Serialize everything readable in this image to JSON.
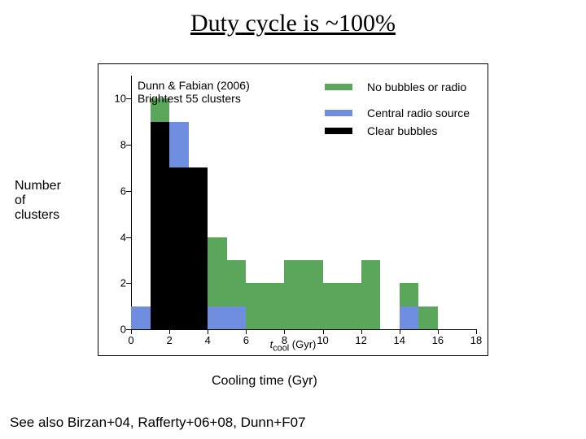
{
  "title": "Duty cycle is ~100%",
  "ylabel_out": "Number\nof\nclusters",
  "xlabel_out": "Cooling time (Gyr)",
  "footer": "See also Birzan+04, Rafferty+06+08, Dunn+F07",
  "annotations": {
    "source_line1": "Dunn & Fabian (2006)",
    "source_line2": "Brightest 55 clusters",
    "legend_green": "No bubbles or radio",
    "legend_blue": "Central radio source",
    "legend_black": "Clear bubbles"
  },
  "chart": {
    "type": "stacked-histogram",
    "background_color": "#ffffff",
    "x": {
      "min": 0,
      "max": 18,
      "ticks": [
        0,
        2,
        4,
        6,
        8,
        10,
        12,
        14,
        16,
        18
      ],
      "title": "t_cool (Gyr)"
    },
    "y": {
      "min": 0,
      "max": 11,
      "ticks": [
        0,
        2,
        4,
        6,
        8,
        10
      ]
    },
    "bin_width": 1,
    "colors": {
      "green": "#5aa65a",
      "blue": "#708ee0",
      "black": "#000000"
    },
    "legend_swatch_size": {
      "w": 34,
      "h": 8
    },
    "axis_font_px": 13,
    "bins": [
      {
        "x": 0,
        "green": 0,
        "blue": 1,
        "black": 0
      },
      {
        "x": 1,
        "green": 1,
        "blue": 0,
        "black": 9
      },
      {
        "x": 2,
        "green": 0,
        "blue": 2,
        "black": 7
      },
      {
        "x": 3,
        "green": 0,
        "blue": 0,
        "black": 7
      },
      {
        "x": 4,
        "green": 3,
        "blue": 1,
        "black": 0
      },
      {
        "x": 5,
        "green": 2,
        "blue": 1,
        "black": 0
      },
      {
        "x": 6,
        "green": 2,
        "blue": 0,
        "black": 0
      },
      {
        "x": 7,
        "green": 2,
        "blue": 0,
        "black": 0
      },
      {
        "x": 8,
        "green": 3,
        "blue": 0,
        "black": 0
      },
      {
        "x": 9,
        "green": 3,
        "blue": 0,
        "black": 0
      },
      {
        "x": 10,
        "green": 2,
        "blue": 0,
        "black": 0
      },
      {
        "x": 11,
        "green": 2,
        "blue": 0,
        "black": 0
      },
      {
        "x": 12,
        "green": 3,
        "blue": 0,
        "black": 0
      },
      {
        "x": 13,
        "green": 0,
        "blue": 0,
        "black": 0
      },
      {
        "x": 14,
        "green": 1,
        "blue": 1,
        "black": 0
      },
      {
        "x": 15,
        "green": 1,
        "blue": 0,
        "black": 0
      },
      {
        "x": 16,
        "green": 0,
        "blue": 0,
        "black": 0
      },
      {
        "x": 17,
        "green": 0,
        "blue": 0,
        "black": 0
      }
    ]
  }
}
